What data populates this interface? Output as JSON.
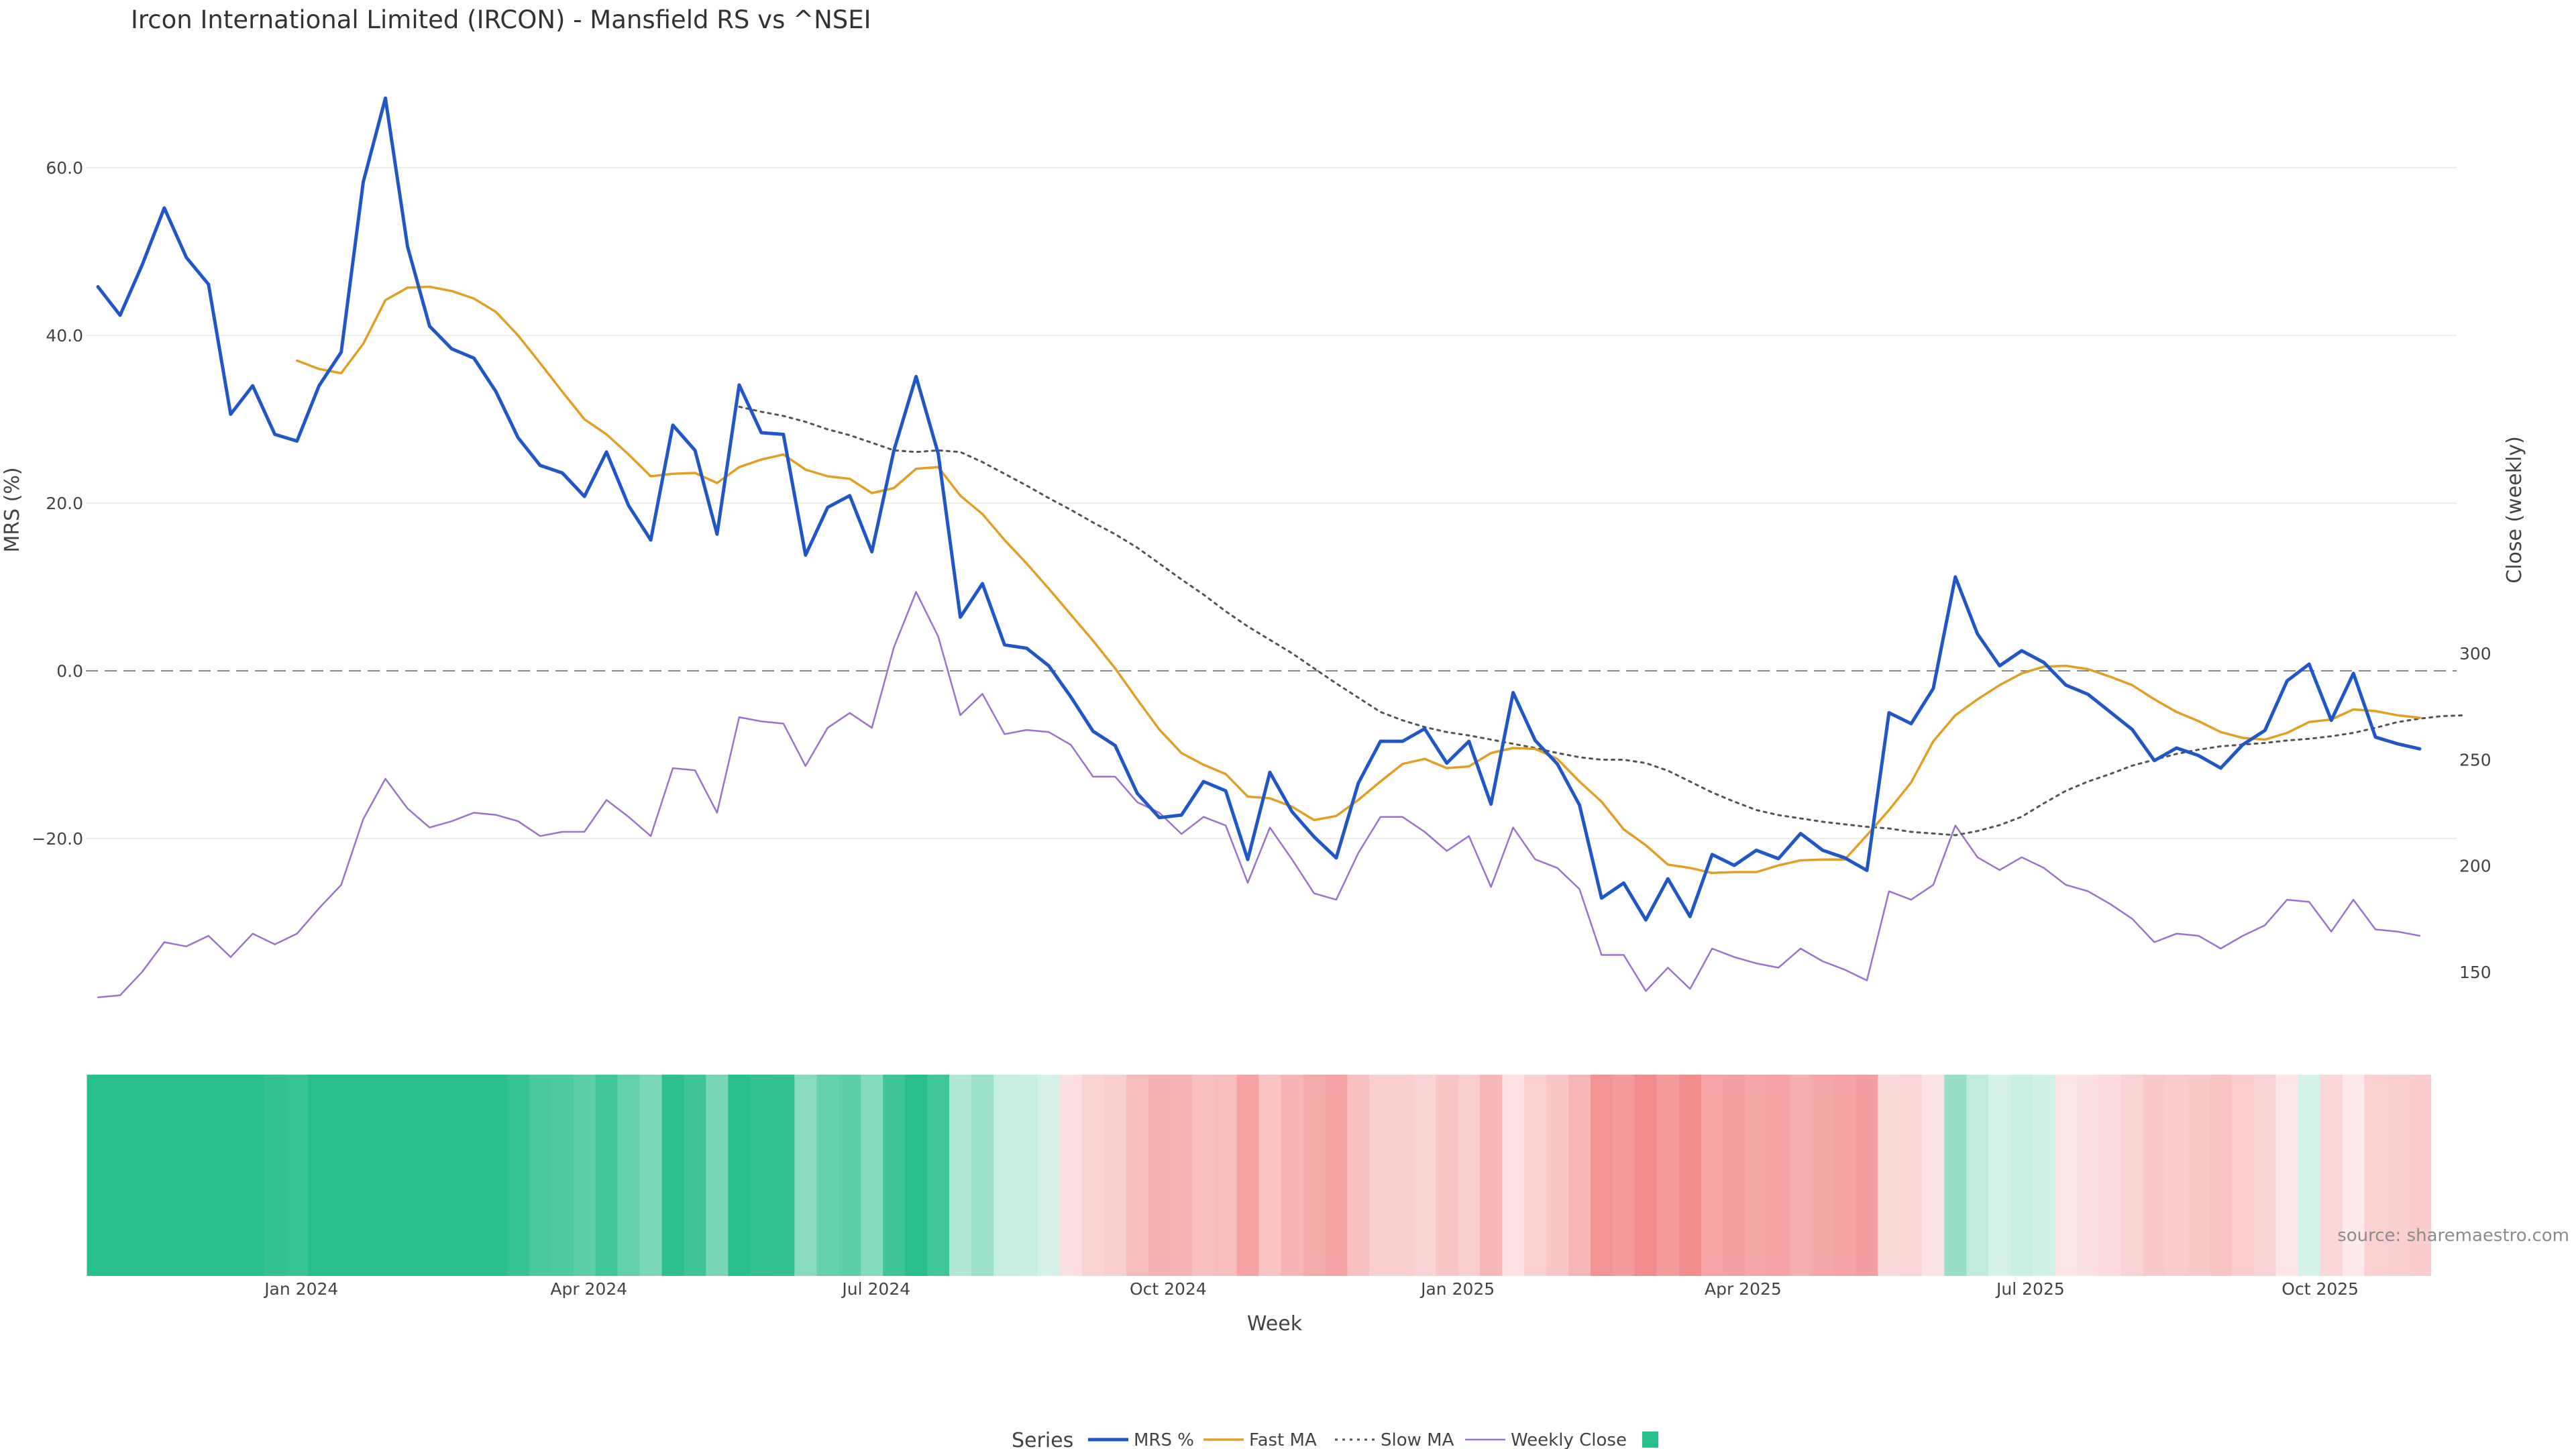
{
  "chart_data": {
    "type": "line",
    "title": "Ircon International Limited (IRCON) - Mansfield RS vs ^NSEI",
    "xlabel": "Week",
    "ylabel_left": "MRS (%)",
    "ylabel_right": "Close (weekly)",
    "ylim_left": [
      -35,
      70
    ],
    "ylim_right": [
      120,
      335
    ],
    "yticks_left": [
      -20,
      0,
      20,
      40,
      60
    ],
    "ytick_labels_left": [
      "−20.0",
      "0.0",
      "20.0",
      "40.0",
      "60.0"
    ],
    "yticks_right": [
      150,
      200,
      250,
      300
    ],
    "ytick_labels_right": [
      "150",
      "200",
      "250",
      "300"
    ],
    "zero_line": 0,
    "x_start_week": 0,
    "x_end_week": 106,
    "x_ticks": [
      {
        "label": "Jan 2024",
        "week": 9.2
      },
      {
        "label": "Apr 2024",
        "week": 22.2
      },
      {
        "label": "Jul 2024",
        "week": 35.2
      },
      {
        "label": "Oct 2024",
        "week": 48.4
      },
      {
        "label": "Jan 2025",
        "week": 61.5
      },
      {
        "label": "Apr 2025",
        "week": 74.4
      },
      {
        "label": "Jul 2025",
        "week": 87.4
      },
      {
        "label": "Oct 2025",
        "week": 100.5
      }
    ],
    "series": [
      {
        "name": "MRS %",
        "axis": "left",
        "color": "#1f57c9",
        "dash": "",
        "width": 5,
        "start_week": 0,
        "values": [
          45.8,
          42.4,
          48.4,
          55.2,
          49.3,
          46.1,
          30.6,
          34.0,
          28.2,
          27.4,
          34.0,
          38.0,
          58.3,
          68.3,
          50.6,
          41.1,
          38.4,
          37.3,
          33.3,
          27.8,
          24.5,
          23.6,
          20.8,
          26.1,
          19.7,
          15.6,
          29.3,
          26.3,
          16.3,
          34.1,
          28.4,
          28.2,
          13.8,
          19.5,
          20.9,
          14.2,
          26.3,
          35.1,
          25.9,
          6.4,
          10.4,
          3.1,
          2.7,
          0.6,
          -3.1,
          -7.2,
          -8.9,
          -14.6,
          -17.5,
          -17.2,
          -13.2,
          -14.3,
          -22.5,
          -12.1,
          -16.8,
          -19.8,
          -22.3,
          -13.4,
          -8.4,
          -8.4,
          -6.9,
          -11.0,
          -8.4,
          -15.9,
          -2.6,
          -8.3,
          -11.1,
          -16.0,
          -27.1,
          -25.3,
          -29.7,
          -24.8,
          -29.3,
          -21.9,
          -23.2,
          -21.4,
          -22.4,
          -19.4,
          -21.4,
          -22.3,
          -23.8,
          -5.0,
          -6.3,
          -2.1,
          11.2,
          4.4,
          0.6,
          2.4,
          1.0,
          -1.7,
          -2.8,
          -4.9,
          -7.0,
          -10.7,
          -9.2,
          -10.1,
          -11.6,
          -8.8,
          -7.1,
          -1.2,
          0.8,
          -5.9,
          -0.3,
          -7.9,
          -8.7,
          -9.3
        ]
      },
      {
        "name": "Fast MA",
        "axis": "left",
        "color": "#e1a023",
        "dash": "",
        "width": 3.5,
        "start_week": 9,
        "values": [
          37.0,
          36.0,
          35.5,
          39.0,
          44.2,
          45.7,
          45.8,
          45.3,
          44.4,
          42.8,
          40.0,
          36.7,
          33.3,
          30.0,
          28.2,
          25.8,
          23.2,
          23.5,
          23.6,
          22.4,
          24.3,
          25.2,
          25.8,
          24.0,
          23.2,
          22.9,
          21.2,
          21.8,
          24.1,
          24.3,
          20.9,
          18.7,
          15.6,
          12.8,
          9.8,
          6.7,
          3.6,
          0.3,
          -3.4,
          -7.0,
          -9.8,
          -11.2,
          -12.3,
          -15.0,
          -15.2,
          -16.2,
          -17.8,
          -17.3,
          -15.4,
          -13.2,
          -11.1,
          -10.5,
          -11.6,
          -11.4,
          -9.8,
          -9.2,
          -9.3,
          -10.5,
          -13.2,
          -15.6,
          -18.9,
          -20.8,
          -23.1,
          -23.5,
          -24.1,
          -24.0,
          -24.0,
          -23.2,
          -22.6,
          -22.5,
          -22.5,
          -19.6,
          -16.6,
          -13.3,
          -8.4,
          -5.3,
          -3.4,
          -1.7,
          -0.3,
          0.5,
          0.6,
          0.2,
          -0.7,
          -1.7,
          -3.4,
          -4.9,
          -6.0,
          -7.3,
          -8.0,
          -8.2,
          -7.4,
          -6.1,
          -5.8,
          -4.6,
          -4.8,
          -5.3,
          -5.6
        ]
      },
      {
        "name": "Slow MA",
        "axis": "left",
        "color": "#555555",
        "dash": "4,7",
        "width": 3,
        "start_week": 29,
        "values": [
          31.5,
          30.9,
          30.4,
          29.7,
          28.8,
          28.1,
          27.2,
          26.3,
          26.1,
          26.3,
          26.1,
          24.9,
          23.5,
          22.1,
          20.6,
          19.2,
          17.7,
          16.3,
          14.7,
          12.8,
          10.9,
          9.1,
          7.1,
          5.3,
          3.7,
          2.1,
          0.3,
          -1.5,
          -3.2,
          -4.9,
          -5.9,
          -6.7,
          -7.3,
          -7.7,
          -8.2,
          -8.7,
          -9.2,
          -9.8,
          -10.3,
          -10.6,
          -10.6,
          -11.0,
          -11.9,
          -13.2,
          -14.5,
          -15.6,
          -16.6,
          -17.2,
          -17.6,
          -18.0,
          -18.3,
          -18.6,
          -18.8,
          -19.2,
          -19.4,
          -19.6,
          -19.1,
          -18.4,
          -17.4,
          -15.8,
          -14.3,
          -13.2,
          -12.3,
          -11.3,
          -10.6,
          -9.9,
          -9.4,
          -9.0,
          -8.8,
          -8.6,
          -8.3,
          -8.1,
          -7.8,
          -7.4,
          -6.8,
          -6.1,
          -5.7,
          -5.4,
          -5.3
        ]
      },
      {
        "name": "Weekly Close",
        "axis": "right",
        "color": "#9b72cf",
        "dash": "",
        "width": 2.5,
        "start_week": 0,
        "values": [
          138,
          139,
          150,
          164,
          162,
          167,
          157,
          168,
          163,
          168,
          180,
          191,
          222,
          241,
          227,
          218,
          221,
          225,
          224,
          221,
          214,
          216,
          216,
          231,
          223,
          214,
          246,
          245,
          225,
          270,
          268,
          267,
          247,
          265,
          272,
          265,
          303,
          329,
          308,
          271,
          281,
          262,
          264,
          263,
          257,
          242,
          242,
          230,
          225,
          215,
          223,
          219,
          192,
          218,
          203,
          187,
          184,
          206,
          223,
          223,
          216,
          207,
          214,
          190,
          218,
          203,
          199,
          189,
          158,
          158,
          141,
          152,
          142,
          161,
          157,
          154,
          152,
          161,
          155,
          151,
          146,
          188,
          184,
          191,
          219,
          204,
          198,
          204,
          199,
          191,
          188,
          182,
          175,
          164,
          168,
          167,
          161,
          167,
          172,
          184,
          183,
          169,
          184,
          170,
          169,
          167
        ]
      }
    ],
    "heatmap": {
      "label": "MRS % heatmap band",
      "positive_color": "#29bf8c",
      "negative_color": "#f28b8b",
      "max_abs": 30
    },
    "legend": {
      "title": "Series",
      "items": [
        "MRS %",
        "Fast MA",
        "Slow MA",
        "Weekly Close"
      ],
      "placement": "bottom-center"
    },
    "annotations": [
      "source: sharemaestro.com"
    ]
  }
}
